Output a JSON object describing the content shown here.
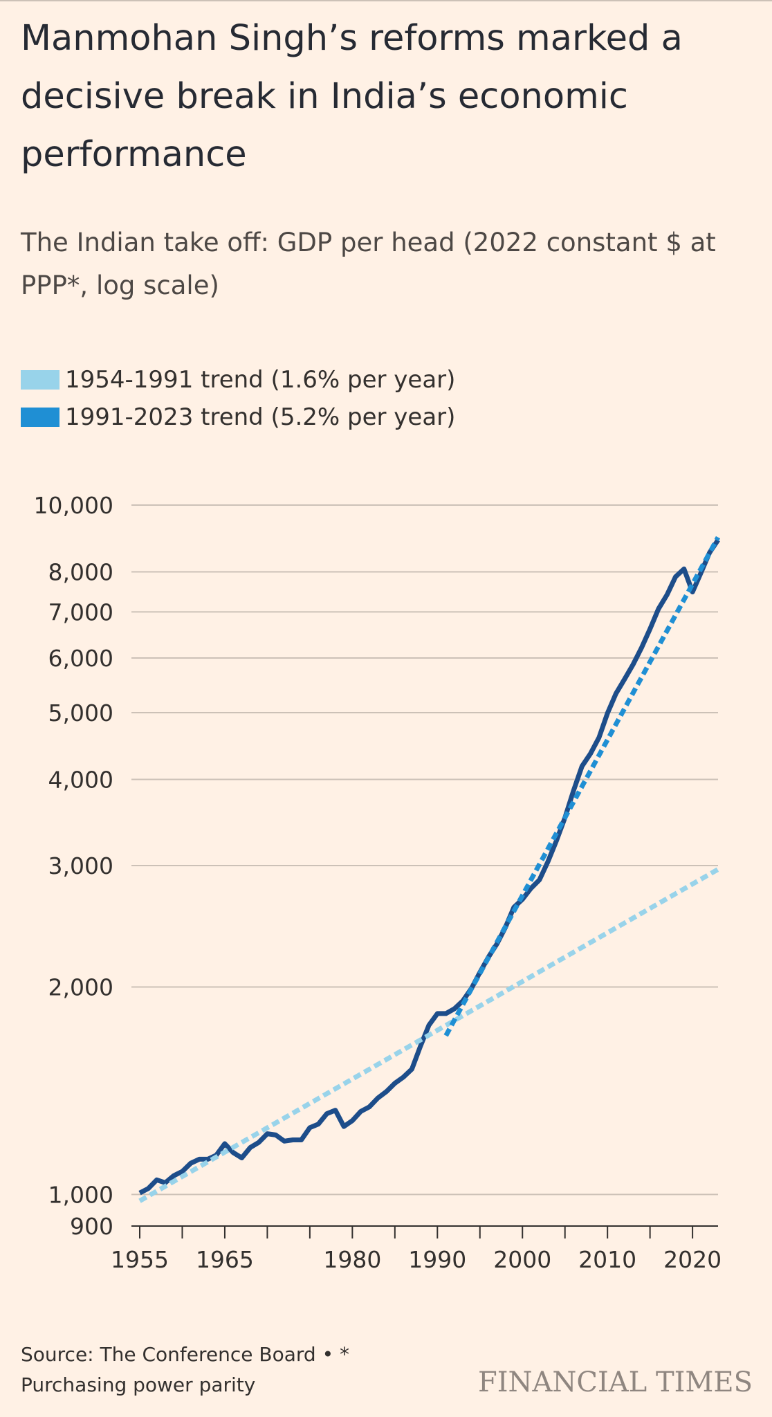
{
  "title": "Manmohan Singh’s reforms marked a decisive break in India’s economic performance",
  "subtitle": "The Indian take off: GDP per head (2022 constant $ at PPP*, log scale)",
  "legend": [
    {
      "label": "1954-1991 trend (1.6% per year)",
      "color": "#98d3ea"
    },
    {
      "label": "1991-2023 trend (5.2% per year)",
      "color": "#1f8fd4"
    }
  ],
  "source_line1": "Source: The Conference Board • *",
  "source_line2": "Purchasing power parity",
  "logo": "FINANCIAL TIMES",
  "colors": {
    "actual": "#1d4d8a",
    "trend_1954_1991": "#98d3ea",
    "trend_1991_2023": "#1f8fd4",
    "gridline": "#ccc1b7",
    "background": "#fff1e5"
  },
  "chart_data": {
    "type": "line",
    "title": "The Indian take off: GDP per head (2022 constant $ at PPP*, log scale)",
    "y_scale": "log",
    "ylim": [
      900,
      10000
    ],
    "xlim": [
      1955,
      2023
    ],
    "grid": true,
    "legend_position": "top-left",
    "yticks": [
      {
        "value": 900,
        "label": "900"
      },
      {
        "value": 1000,
        "label": "1,000"
      },
      {
        "value": 2000,
        "label": "2,000"
      },
      {
        "value": 3000,
        "label": "3,000"
      },
      {
        "value": 4000,
        "label": "4,000"
      },
      {
        "value": 5000,
        "label": "5,000"
      },
      {
        "value": 6000,
        "label": "6,000"
      },
      {
        "value": 7000,
        "label": "7,000"
      },
      {
        "value": 8000,
        "label": "8,000"
      },
      {
        "value": 10000,
        "label": "10,000"
      }
    ],
    "xticks": [
      1955,
      1960,
      1965,
      1970,
      1975,
      1980,
      1985,
      1990,
      1995,
      2000,
      2005,
      2010,
      2015,
      2020
    ],
    "xtick_labels": [
      {
        "value": 1955,
        "label": "1955"
      },
      {
        "value": 1965,
        "label": "1965"
      },
      {
        "value": 1980,
        "label": "1980"
      },
      {
        "value": 1990,
        "label": "1990"
      },
      {
        "value": 2000,
        "label": "2000"
      },
      {
        "value": 2010,
        "label": "2010"
      },
      {
        "value": 2020,
        "label": "2020"
      }
    ],
    "series": [
      {
        "key": "actual",
        "style": "solid",
        "x": [
          1955,
          1956,
          1957,
          1958,
          1959,
          1960,
          1961,
          1962,
          1963,
          1964,
          1965,
          1966,
          1967,
          1968,
          1969,
          1970,
          1971,
          1972,
          1973,
          1974,
          1975,
          1976,
          1977,
          1978,
          1979,
          1980,
          1981,
          1982,
          1983,
          1984,
          1985,
          1986,
          1987,
          1988,
          1989,
          1990,
          1991,
          1992,
          1993,
          1994,
          1995,
          1996,
          1997,
          1998,
          1999,
          2000,
          2001,
          2002,
          2003,
          2004,
          2005,
          2006,
          2007,
          2008,
          2009,
          2010,
          2011,
          2012,
          2013,
          2014,
          2015,
          2016,
          2017,
          2018,
          2019,
          2020,
          2021,
          2022,
          2023
        ],
        "y": [
          1005,
          1020,
          1050,
          1040,
          1065,
          1080,
          1110,
          1125,
          1125,
          1140,
          1185,
          1150,
          1130,
          1170,
          1190,
          1225,
          1220,
          1195,
          1200,
          1200,
          1250,
          1265,
          1310,
          1325,
          1255,
          1280,
          1320,
          1340,
          1380,
          1410,
          1450,
          1480,
          1520,
          1640,
          1760,
          1830,
          1830,
          1860,
          1910,
          1990,
          2100,
          2210,
          2310,
          2440,
          2610,
          2680,
          2780,
          2860,
          3040,
          3260,
          3520,
          3850,
          4180,
          4360,
          4600,
          4990,
          5330,
          5590,
          5870,
          6210,
          6610,
          7070,
          7410,
          7870,
          8080,
          7480,
          7980,
          8530,
          8900
        ]
      },
      {
        "name": "1954-1991 trend (1.6% per year)",
        "key": "trend_1954_1991",
        "style": "dashed",
        "x": [
          1954,
          2023
        ],
        "y": [
          963,
          2962
        ]
      },
      {
        "name": "1991-2023 trend (5.2% per year)",
        "key": "trend_1991_2023",
        "style": "dashed",
        "x": [
          1991,
          2023
        ],
        "y": [
          1700,
          8980
        ]
      }
    ]
  }
}
